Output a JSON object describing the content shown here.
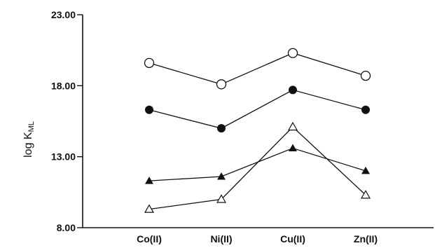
{
  "chart_data": {
    "type": "line",
    "title": "",
    "xlabel": "",
    "ylabel": "log K",
    "ylabel_subscript": "ML",
    "categories": [
      "Co(II)",
      "Ni(II)",
      "Cu(II)",
      "Zn(II)"
    ],
    "ylim": [
      8,
      23
    ],
    "yticks": [
      "8.00",
      "13.00",
      "18.00",
      "23.00"
    ],
    "grid": false,
    "legend": "none",
    "series": [
      {
        "marker": "open-circle",
        "values": [
          19.6,
          18.1,
          20.3,
          18.7
        ]
      },
      {
        "marker": "filled-circle",
        "values": [
          16.3,
          15.0,
          17.7,
          16.3
        ]
      },
      {
        "marker": "filled-triangle",
        "values": [
          11.3,
          11.6,
          13.6,
          12.0
        ]
      },
      {
        "marker": "open-triangle",
        "values": [
          9.3,
          10.0,
          15.1,
          10.3
        ]
      }
    ],
    "colors": {
      "ink": "#111111"
    }
  }
}
